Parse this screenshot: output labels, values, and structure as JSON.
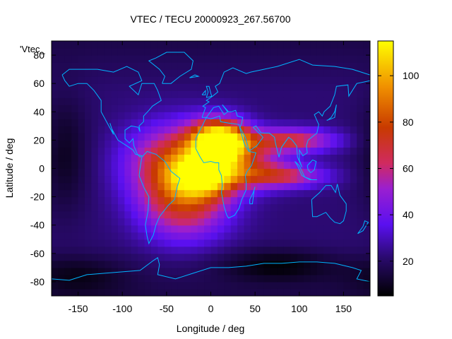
{
  "chart_data": {
    "type": "heatmap",
    "title": "VTEC / TECU 20000923_267.56700",
    "xlabel": "Longitude / deg",
    "ylabel": "Latitude / deg",
    "series_label": "'Vtec_",
    "xlim": [
      -180,
      180
    ],
    "ylim": [
      -90,
      90
    ],
    "x_ticks": [
      -150,
      -100,
      -50,
      0,
      50,
      100,
      150
    ],
    "y_ticks": [
      -80,
      -60,
      -40,
      -20,
      0,
      20,
      40,
      60,
      80
    ],
    "colorbar": {
      "range": [
        5,
        115
      ],
      "ticks": [
        20,
        40,
        60,
        80,
        100
      ],
      "colormap": "black-purple-red-orange-yellow"
    },
    "grid": false,
    "cell_size_deg": [
      7.5,
      5
    ],
    "field_model": {
      "background_tecu": 22,
      "peaks": [
        {
          "lon": 10,
          "lat": 20,
          "amp": 95,
          "sigma_lon": 22,
          "sigma_lat": 10
        },
        {
          "lon": -35,
          "lat": 5,
          "amp": 55,
          "sigma_lon": 40,
          "sigma_lat": 18
        },
        {
          "lon": -5,
          "lat": -5,
          "amp": 55,
          "sigma_lon": 25,
          "sigma_lat": 10
        },
        {
          "lon": -30,
          "lat": -25,
          "amp": 45,
          "sigma_lon": 35,
          "sigma_lat": 18
        },
        {
          "lon": 90,
          "lat": 20,
          "amp": 45,
          "sigma_lon": 35,
          "sigma_lat": 6
        },
        {
          "lon": 80,
          "lat": -5,
          "amp": 40,
          "sigma_lon": 35,
          "sigma_lat": 6
        },
        {
          "lon": 40,
          "lat": 5,
          "amp": 30,
          "sigma_lon": 30,
          "sigma_lat": 12
        }
      ],
      "troughs": [
        {
          "lon": -165,
          "lat": 10,
          "amp": 12,
          "sigma_lon": 20,
          "sigma_lat": 30
        },
        {
          "lon": 75,
          "lat": -68,
          "amp": 14,
          "sigma_lon": 45,
          "sigma_lat": 8
        },
        {
          "lon": -150,
          "lat": -75,
          "amp": 10,
          "sigma_lon": 40,
          "sigma_lat": 10
        }
      ]
    },
    "coastlines": [
      [
        [
          -168,
          66
        ],
        [
          -160,
          70
        ],
        [
          -140,
          70
        ],
        [
          -128,
          70
        ],
        [
          -110,
          68
        ],
        [
          -95,
          72
        ],
        [
          -82,
          68
        ],
        [
          -78,
          62
        ],
        [
          -92,
          58
        ],
        [
          -82,
          52
        ],
        [
          -78,
          60
        ],
        [
          -64,
          60
        ],
        [
          -60,
          55
        ],
        [
          -56,
          48
        ],
        [
          -66,
          44
        ],
        [
          -70,
          41
        ],
        [
          -76,
          37
        ],
        [
          -76,
          33
        ],
        [
          -81,
          30
        ],
        [
          -80,
          26
        ],
        [
          -82,
          29
        ],
        [
          -90,
          30
        ],
        [
          -97,
          27
        ],
        [
          -97,
          21
        ],
        [
          -92,
          18
        ],
        [
          -88,
          21
        ],
        [
          -87,
          16
        ],
        [
          -83,
          10
        ],
        [
          -80,
          8
        ],
        [
          -78,
          9
        ],
        [
          -85,
          10
        ],
        [
          -88,
          13
        ],
        [
          -95,
          16
        ],
        [
          -105,
          20
        ],
        [
          -112,
          28
        ],
        [
          -114,
          32
        ],
        [
          -110,
          24
        ],
        [
          -117,
          32
        ],
        [
          -124,
          40
        ],
        [
          -124,
          48
        ],
        [
          -132,
          55
        ],
        [
          -140,
          60
        ],
        [
          -150,
          60
        ],
        [
          -160,
          58
        ],
        [
          -165,
          62
        ],
        [
          -168,
          66
        ]
      ],
      [
        [
          -78,
          8
        ],
        [
          -72,
          12
        ],
        [
          -62,
          10
        ],
        [
          -52,
          5
        ],
        [
          -45,
          -2
        ],
        [
          -35,
          -7
        ],
        [
          -38,
          -13
        ],
        [
          -41,
          -22
        ],
        [
          -48,
          -26
        ],
        [
          -58,
          -34
        ],
        [
          -62,
          -40
        ],
        [
          -65,
          -47
        ],
        [
          -70,
          -53
        ],
        [
          -72,
          -48
        ],
        [
          -74,
          -40
        ],
        [
          -71,
          -30
        ],
        [
          -70,
          -20
        ],
        [
          -76,
          -13
        ],
        [
          -81,
          -5
        ],
        [
          -80,
          0
        ],
        [
          -78,
          8
        ]
      ],
      [
        [
          -55,
          60
        ],
        [
          -45,
          60
        ],
        [
          -35,
          65
        ],
        [
          -22,
          70
        ],
        [
          -20,
          76
        ],
        [
          -30,
          82
        ],
        [
          -50,
          82
        ],
        [
          -62,
          78
        ],
        [
          -70,
          76
        ],
        [
          -58,
          70
        ],
        [
          -52,
          65
        ],
        [
          -55,
          60
        ]
      ],
      [
        [
          -10,
          36
        ],
        [
          -6,
          43
        ],
        [
          -9,
          44
        ],
        [
          -2,
          47
        ],
        [
          -5,
          48
        ],
        [
          2,
          51
        ],
        [
          8,
          54
        ],
        [
          5,
          58
        ],
        [
          10,
          60
        ],
        [
          15,
          68
        ],
        [
          25,
          71
        ],
        [
          40,
          67
        ],
        [
          45,
          68
        ],
        [
          60,
          70
        ],
        [
          75,
          72
        ],
        [
          100,
          77
        ],
        [
          115,
          73
        ],
        [
          140,
          72
        ],
        [
          160,
          70
        ],
        [
          170,
          68
        ],
        [
          180,
          66
        ]
      ],
      [
        [
          180,
          62
        ],
        [
          165,
          60
        ],
        [
          160,
          55
        ],
        [
          156,
          51
        ],
        [
          155,
          59
        ],
        [
          142,
          58
        ],
        [
          140,
          52
        ],
        [
          135,
          44
        ],
        [
          128,
          40
        ],
        [
          126,
          37
        ],
        [
          122,
          40
        ],
        [
          117,
          38
        ],
        [
          122,
          31
        ],
        [
          120,
          25
        ],
        [
          110,
          20
        ],
        [
          108,
          16
        ],
        [
          109,
          11
        ],
        [
          104,
          9
        ],
        [
          100,
          13
        ],
        [
          100,
          6
        ],
        [
          103,
          1
        ],
        [
          98,
          8
        ],
        [
          97,
          16
        ],
        [
          92,
          20
        ],
        [
          88,
          22
        ],
        [
          80,
          15
        ],
        [
          77,
          8
        ],
        [
          73,
          18
        ],
        [
          72,
          22
        ],
        [
          66,
          25
        ],
        [
          57,
          25
        ],
        [
          51,
          30
        ],
        [
          48,
          29
        ],
        [
          56,
          24
        ],
        [
          59,
          22
        ],
        [
          52,
          16
        ],
        [
          45,
          13
        ],
        [
          43,
          13
        ],
        [
          39,
          22
        ],
        [
          33,
          29
        ],
        [
          35,
          32
        ],
        [
          36,
          36
        ],
        [
          30,
          37
        ],
        [
          28,
          41
        ],
        [
          23,
          40
        ],
        [
          20,
          40
        ],
        [
          13,
          45
        ],
        [
          19,
          40
        ],
        [
          15,
          38
        ],
        [
          9,
          44
        ],
        [
          3,
          43
        ],
        [
          -5,
          36
        ],
        [
          -10,
          36
        ]
      ],
      [
        [
          -5,
          36
        ],
        [
          -17,
          21
        ],
        [
          -17,
          14
        ],
        [
          -12,
          8
        ],
        [
          -8,
          4
        ],
        [
          0,
          5
        ],
        [
          5,
          4
        ],
        [
          9,
          4
        ],
        [
          9,
          -1
        ],
        [
          12,
          -5
        ],
        [
          13,
          -12
        ],
        [
          12,
          -17
        ],
        [
          15,
          -27
        ],
        [
          18,
          -33
        ],
        [
          20,
          -35
        ],
        [
          27,
          -33
        ],
        [
          32,
          -28
        ],
        [
          35,
          -22
        ],
        [
          40,
          -15
        ],
        [
          40,
          -10
        ],
        [
          39,
          -5
        ],
        [
          41,
          -2
        ],
        [
          46,
          2
        ],
        [
          51,
          11
        ],
        [
          43,
          12
        ],
        [
          38,
          17
        ],
        [
          33,
          28
        ],
        [
          32,
          31
        ],
        [
          20,
          32
        ],
        [
          11,
          33
        ],
        [
          10,
          37
        ],
        [
          0,
          35
        ],
        [
          -5,
          36
        ]
      ],
      [
        [
          44,
          -25
        ],
        [
          47,
          -25
        ],
        [
          49,
          -15
        ],
        [
          50,
          -13
        ],
        [
          48,
          -17
        ],
        [
          44,
          -22
        ],
        [
          44,
          -25
        ]
      ],
      [
        [
          114,
          -22
        ],
        [
          115,
          -34
        ],
        [
          120,
          -34
        ],
        [
          130,
          -31
        ],
        [
          135,
          -35
        ],
        [
          140,
          -38
        ],
        [
          146,
          -39
        ],
        [
          150,
          -37
        ],
        [
          153,
          -30
        ],
        [
          153,
          -25
        ],
        [
          146,
          -19
        ],
        [
          143,
          -11
        ],
        [
          141,
          -17
        ],
        [
          136,
          -12
        ],
        [
          130,
          -12
        ],
        [
          123,
          -17
        ],
        [
          114,
          -22
        ]
      ],
      [
        [
          95,
          5
        ],
        [
          100,
          2
        ],
        [
          106,
          -6
        ],
        [
          103,
          -5
        ],
        [
          98,
          2
        ],
        [
          95,
          5
        ]
      ],
      [
        [
          106,
          -6
        ],
        [
          114,
          -8
        ],
        [
          120,
          -8
        ],
        [
          112,
          -8
        ],
        [
          106,
          -6
        ]
      ],
      [
        [
          109,
          2
        ],
        [
          115,
          6
        ],
        [
          119,
          5
        ],
        [
          117,
          -1
        ],
        [
          113,
          -3
        ],
        [
          110,
          -1
        ],
        [
          109,
          2
        ]
      ],
      [
        [
          131,
          34
        ],
        [
          136,
          35
        ],
        [
          140,
          36
        ],
        [
          141,
          41
        ],
        [
          142,
          45
        ],
        [
          140,
          40
        ],
        [
          136,
          36
        ],
        [
          132,
          34
        ],
        [
          131,
          34
        ]
      ],
      [
        [
          -180,
          -78
        ],
        [
          -160,
          -79
        ],
        [
          -150,
          -77
        ],
        [
          -140,
          -75
        ],
        [
          -120,
          -74
        ],
        [
          -100,
          -73
        ],
        [
          -80,
          -72
        ],
        [
          -65,
          -65
        ],
        [
          -60,
          -63
        ],
        [
          -58,
          -68
        ],
        [
          -60,
          -75
        ],
        [
          -40,
          -78
        ],
        [
          -20,
          -74
        ],
        [
          0,
          -70
        ],
        [
          20,
          -70
        ],
        [
          40,
          -69
        ],
        [
          60,
          -67
        ],
        [
          80,
          -67
        ],
        [
          100,
          -66
        ],
        [
          120,
          -66
        ],
        [
          140,
          -67
        ],
        [
          160,
          -70
        ],
        [
          170,
          -72
        ],
        [
          165,
          -78
        ],
        [
          180,
          -80
        ]
      ],
      [
        [
          -5,
          50
        ],
        [
          -3,
          54
        ],
        [
          -5,
          58
        ],
        [
          -2,
          58
        ],
        [
          0,
          53
        ],
        [
          1,
          51
        ],
        [
          -5,
          50
        ]
      ],
      [
        [
          -10,
          52
        ],
        [
          -6,
          55
        ],
        [
          -6,
          52
        ],
        [
          -10,
          52
        ]
      ],
      [
        [
          -24,
          64
        ],
        [
          -14,
          65
        ],
        [
          -18,
          66
        ],
        [
          -24,
          64
        ]
      ],
      [
        [
          166,
          -46
        ],
        [
          172,
          -41
        ],
        [
          174,
          -37
        ],
        [
          178,
          -38
        ],
        [
          172,
          -44
        ],
        [
          166,
          -46
        ]
      ]
    ]
  }
}
